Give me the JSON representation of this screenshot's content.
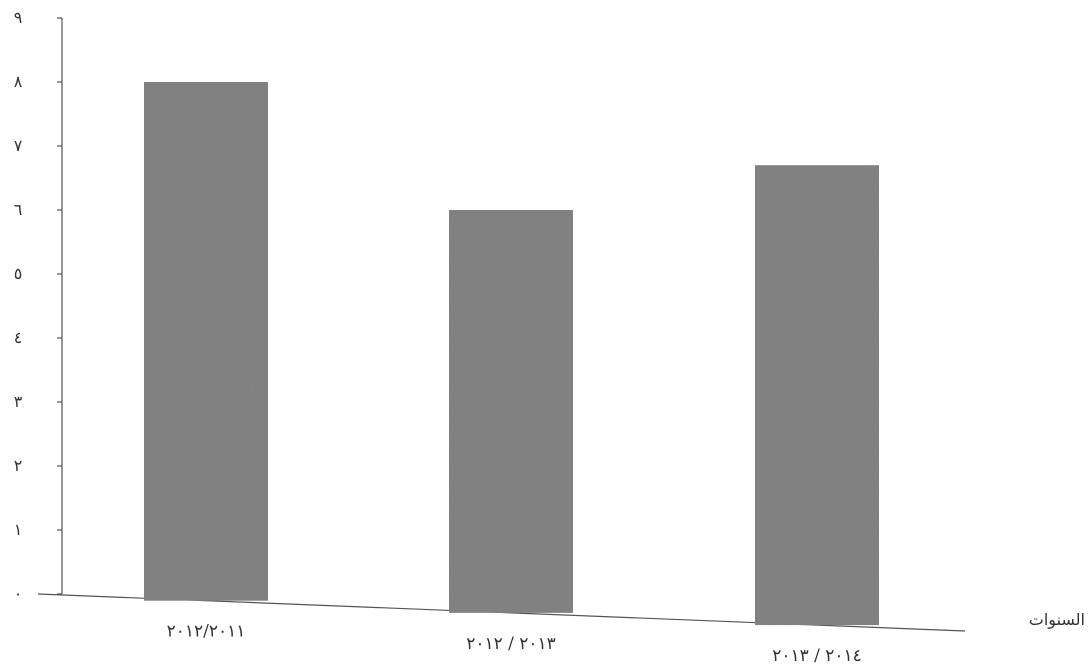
{
  "chart_data": {
    "type": "bar",
    "title": "",
    "xlabel": "السنوات",
    "ylabel": "",
    "categories": [
      "٢٠١٢/٢٠١١",
      "٢٠١٣ / ٢٠١٢",
      "٢٠١٤ / ٢٠١٣"
    ],
    "values": [
      8,
      6,
      6.7
    ],
    "ylim": [
      0,
      9
    ],
    "yticks": [
      0,
      1,
      2,
      3,
      4,
      5,
      6,
      7,
      8,
      9
    ],
    "ytick_labels": [
      "٠",
      "١",
      "٢",
      "٣",
      "٤",
      "٥",
      "٦",
      "٧",
      "٨",
      "٩"
    ],
    "grid": false,
    "legend": "none",
    "bar_color": "#858585"
  }
}
